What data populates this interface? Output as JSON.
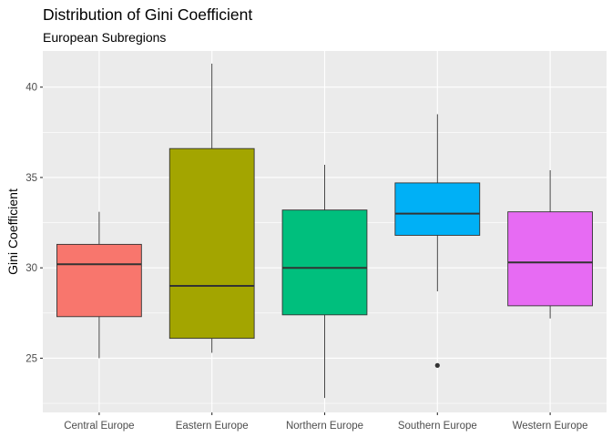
{
  "chart_data": {
    "type": "boxplot",
    "title": "Distribution of Gini Coefficient",
    "subtitle": "European Subregions",
    "xlabel": "",
    "ylabel": "Gini Coefficient",
    "ylim": [
      22.0,
      42.0
    ],
    "yticks": [
      25,
      30,
      35,
      40
    ],
    "grid": true,
    "categories": [
      "Central Europe",
      "Eastern Europe",
      "Northern Europe",
      "Southern Europe",
      "Western Europe"
    ],
    "series": [
      {
        "category": "Central Europe",
        "whisker_low": 25.0,
        "q1": 27.3,
        "median": 30.2,
        "q3": 31.3,
        "whisker_high": 33.1,
        "outliers": [],
        "color": "#F8766D"
      },
      {
        "category": "Eastern Europe",
        "whisker_low": 25.3,
        "q1": 26.1,
        "median": 29.0,
        "q3": 36.6,
        "whisker_high": 41.3,
        "outliers": [],
        "color": "#A3A500"
      },
      {
        "category": "Northern Europe",
        "whisker_low": 22.8,
        "q1": 27.4,
        "median": 30.0,
        "q3": 33.2,
        "whisker_high": 35.7,
        "outliers": [],
        "color": "#00BF7D"
      },
      {
        "category": "Southern Europe",
        "whisker_low": 28.7,
        "q1": 31.8,
        "median": 33.0,
        "q3": 34.7,
        "whisker_high": 38.5,
        "outliers": [
          24.6
        ],
        "color": "#00B0F6"
      },
      {
        "category": "Western Europe",
        "whisker_low": 27.2,
        "q1": 27.9,
        "median": 30.3,
        "q3": 33.1,
        "whisker_high": 35.4,
        "outliers": [],
        "color": "#E76BF3"
      }
    ]
  }
}
